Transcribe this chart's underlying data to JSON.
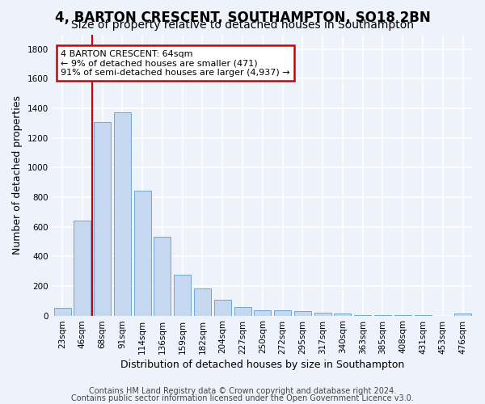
{
  "title1": "4, BARTON CRESCENT, SOUTHAMPTON, SO18 2BN",
  "title2": "Size of property relative to detached houses in Southampton",
  "xlabel": "Distribution of detached houses by size in Southampton",
  "ylabel": "Number of detached properties",
  "categories": [
    "23sqm",
    "46sqm",
    "68sqm",
    "91sqm",
    "114sqm",
    "136sqm",
    "159sqm",
    "182sqm",
    "204sqm",
    "227sqm",
    "250sqm",
    "272sqm",
    "295sqm",
    "317sqm",
    "340sqm",
    "363sqm",
    "385sqm",
    "408sqm",
    "431sqm",
    "453sqm",
    "476sqm"
  ],
  "values": [
    50,
    640,
    1310,
    1375,
    845,
    530,
    275,
    185,
    105,
    60,
    35,
    35,
    30,
    20,
    15,
    5,
    5,
    5,
    5,
    0,
    15
  ],
  "bar_color": "#c5d8f0",
  "bar_edge_color": "#6fa8d4",
  "vline_color": "#cc0000",
  "annotation_line1": "4 BARTON CRESCENT: 64sqm",
  "annotation_line2": "← 9% of detached houses are smaller (471)",
  "annotation_line3": "91% of semi-detached houses are larger (4,937) →",
  "annotation_box_color": "#cc0000",
  "ylim": [
    0,
    1900
  ],
  "yticks": [
    0,
    200,
    400,
    600,
    800,
    1000,
    1200,
    1400,
    1600,
    1800
  ],
  "background_color": "#eef2fa",
  "grid_color": "#ffffff",
  "footer1": "Contains HM Land Registry data © Crown copyright and database right 2024.",
  "footer2": "Contains public sector information licensed under the Open Government Licence v3.0.",
  "title1_fontsize": 12,
  "title2_fontsize": 10,
  "xlabel_fontsize": 9,
  "ylabel_fontsize": 9,
  "tick_fontsize": 7.5,
  "footer_fontsize": 7,
  "ann_fontsize": 8
}
